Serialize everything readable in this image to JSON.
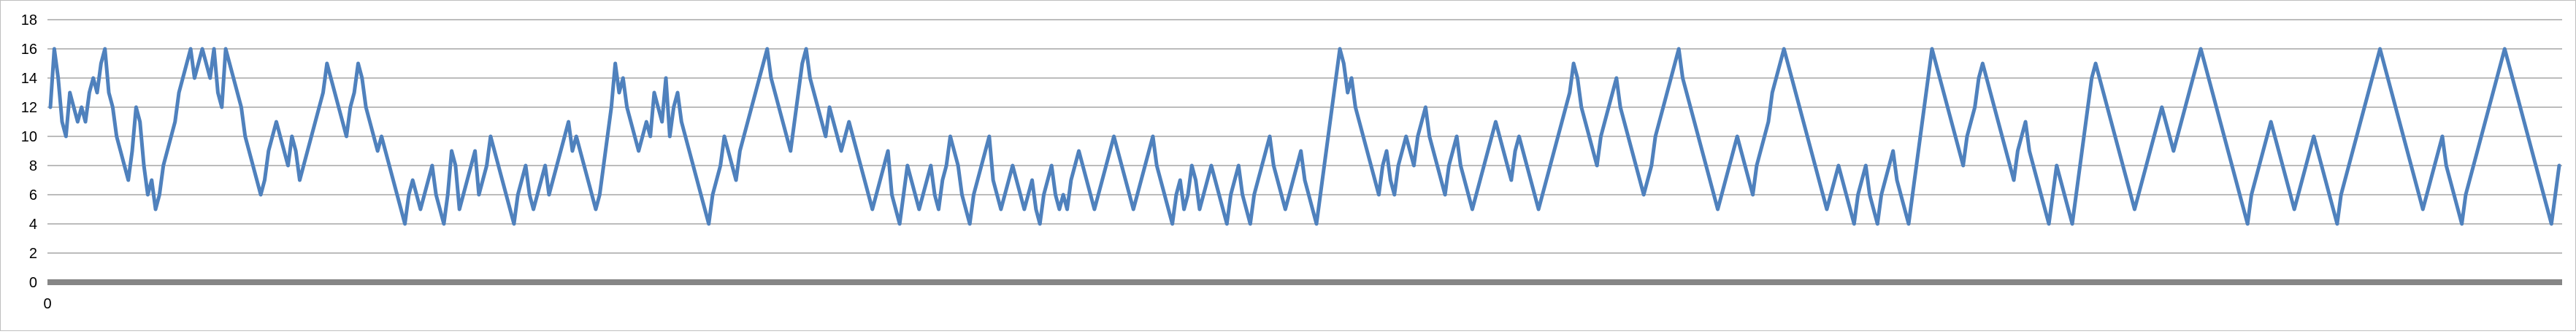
{
  "chart_data": {
    "type": "line",
    "title": "",
    "xlabel": "",
    "ylabel": "",
    "ylim": [
      0,
      18
    ],
    "y_ticks": [
      "0",
      "2",
      "4",
      "6",
      "8",
      "10",
      "12",
      "14",
      "16",
      "18"
    ],
    "x_ticks": [
      "0"
    ],
    "grid": true,
    "legend": "none",
    "colors": {
      "series": "#4f81bd",
      "gridline": "#a6a6a6",
      "x_axis": "#868686",
      "frame": "#bfbfbf",
      "tick_text": "#000000"
    },
    "series": [
      {
        "values": [
          12,
          16,
          14,
          11,
          10,
          13,
          12,
          11,
          12,
          11,
          13,
          14,
          13,
          15,
          16,
          13,
          12,
          10,
          9,
          8,
          7,
          9,
          12,
          11,
          8,
          6,
          7,
          5,
          6,
          8,
          9,
          10,
          11,
          13,
          14,
          15,
          16,
          14,
          15,
          16,
          15,
          14,
          16,
          13,
          12,
          16,
          15,
          14,
          13,
          12,
          10,
          9,
          8,
          7,
          6,
          7,
          9,
          10,
          11,
          10,
          9,
          8,
          10,
          9,
          7,
          8,
          9,
          10,
          11,
          12,
          13,
          15,
          14,
          13,
          12,
          11,
          10,
          12,
          13,
          15,
          14,
          12,
          11,
          10,
          9,
          10,
          9,
          8,
          7,
          6,
          5,
          4,
          6,
          7,
          6,
          5,
          6,
          7,
          8,
          6,
          5,
          4,
          6,
          9,
          8,
          5,
          6,
          7,
          8,
          9,
          6,
          7,
          8,
          10,
          9,
          8,
          7,
          6,
          5,
          4,
          6,
          7,
          8,
          6,
          5,
          6,
          7,
          8,
          6,
          7,
          8,
          9,
          10,
          11,
          9,
          10,
          9,
          8,
          7,
          6,
          5,
          6,
          8,
          10,
          12,
          15,
          13,
          14,
          12,
          11,
          10,
          9,
          10,
          11,
          10,
          13,
          12,
          11,
          14,
          10,
          12,
          13,
          11,
          10,
          9,
          8,
          7,
          6,
          5,
          4,
          6,
          7,
          8,
          10,
          9,
          8,
          7,
          9,
          10,
          11,
          12,
          13,
          14,
          15,
          16,
          14,
          13,
          12,
          11,
          10,
          9,
          11,
          13,
          15,
          16,
          14,
          13,
          12,
          11,
          10,
          12,
          11,
          10,
          9,
          10,
          11,
          10,
          9,
          8,
          7,
          6,
          5,
          6,
          7,
          8,
          9,
          6,
          5,
          4,
          6,
          8,
          7,
          6,
          5,
          6,
          7,
          8,
          6,
          5,
          7,
          8,
          10,
          9,
          8,
          6,
          5,
          4,
          6,
          7,
          8,
          9,
          10,
          7,
          6,
          5,
          6,
          7,
          8,
          7,
          6,
          5,
          6,
          7,
          5,
          4,
          6,
          7,
          8,
          6,
          5,
          6,
          5,
          7,
          8,
          9,
          8,
          7,
          6,
          5,
          6,
          7,
          8,
          9,
          10,
          9,
          8,
          7,
          6,
          5,
          6,
          7,
          8,
          9,
          10,
          8,
          7,
          6,
          5,
          4,
          6,
          7,
          5,
          6,
          8,
          7,
          5,
          6,
          7,
          8,
          7,
          6,
          5,
          4,
          6,
          7,
          8,
          6,
          5,
          4,
          6,
          7,
          8,
          9,
          10,
          8,
          7,
          6,
          5,
          6,
          7,
          8,
          9,
          7,
          6,
          5,
          4,
          6,
          8,
          10,
          12,
          14,
          16,
          15,
          13,
          14,
          12,
          11,
          10,
          9,
          8,
          7,
          6,
          8,
          9,
          7,
          6,
          8,
          9,
          10,
          9,
          8,
          10,
          11,
          12,
          10,
          9,
          8,
          7,
          6,
          8,
          9,
          10,
          8,
          7,
          6,
          5,
          6,
          7,
          8,
          9,
          10,
          11,
          10,
          9,
          8,
          7,
          9,
          10,
          9,
          8,
          7,
          6,
          5,
          6,
          7,
          8,
          9,
          10,
          11,
          12,
          13,
          15,
          14,
          12,
          11,
          10,
          9,
          8,
          10,
          11,
          12,
          13,
          14,
          12,
          11,
          10,
          9,
          8,
          7,
          6,
          7,
          8,
          10,
          11,
          12,
          13,
          14,
          15,
          16,
          14,
          13,
          12,
          11,
          10,
          9,
          8,
          7,
          6,
          5,
          6,
          7,
          8,
          9,
          10,
          9,
          8,
          7,
          6,
          8,
          9,
          10,
          11,
          13,
          14,
          15,
          16,
          15,
          14,
          13,
          12,
          11,
          10,
          9,
          8,
          7,
          6,
          5,
          6,
          7,
          8,
          7,
          6,
          5,
          4,
          6,
          7,
          8,
          6,
          5,
          4,
          6,
          7,
          8,
          9,
          7,
          6,
          5,
          4,
          6,
          8,
          10,
          12,
          14,
          16,
          15,
          14,
          13,
          12,
          11,
          10,
          9,
          8,
          10,
          11,
          12,
          14,
          15,
          14,
          13,
          12,
          11,
          10,
          9,
          8,
          7,
          9,
          10,
          11,
          9,
          8,
          7,
          6,
          5,
          4,
          6,
          8,
          7,
          6,
          5,
          4,
          6,
          8,
          10,
          12,
          14,
          15,
          14,
          13,
          12,
          11,
          10,
          9,
          8,
          7,
          6,
          5,
          6,
          7,
          8,
          9,
          10,
          11,
          12,
          11,
          10,
          9,
          10,
          11,
          12,
          13,
          14,
          15,
          16,
          15,
          14,
          13,
          12,
          11,
          10,
          9,
          8,
          7,
          6,
          5,
          4,
          6,
          7,
          8,
          9,
          10,
          11,
          10,
          9,
          8,
          7,
          6,
          5,
          6,
          7,
          8,
          9,
          10,
          9,
          8,
          7,
          6,
          5,
          4,
          6,
          7,
          8,
          9,
          10,
          11,
          12,
          13,
          14,
          15,
          16,
          15,
          14,
          13,
          12,
          11,
          10,
          9,
          8,
          7,
          6,
          5,
          6,
          7,
          8,
          9,
          10,
          8,
          7,
          6,
          5,
          4,
          6,
          7,
          8,
          9,
          10,
          11,
          12,
          13,
          14,
          15,
          16,
          15,
          14,
          13,
          12,
          11,
          10,
          9,
          8,
          7,
          6,
          5,
          4,
          6,
          8
        ]
      }
    ]
  }
}
